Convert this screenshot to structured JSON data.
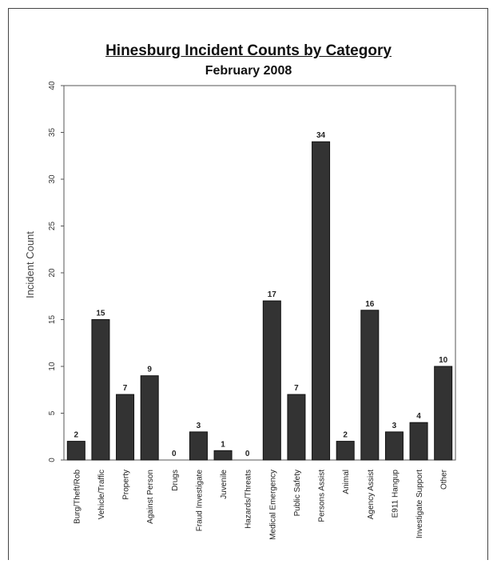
{
  "chart_data": {
    "type": "bar",
    "title": "Hinesburg Incident Counts by Category",
    "subtitle": "February 2008",
    "ylabel": "Incident Count",
    "xlabel": "",
    "ylim": [
      0,
      40
    ],
    "yticks": [
      0,
      5,
      10,
      15,
      20,
      25,
      30,
      35,
      40
    ],
    "grid": false,
    "legend": "none",
    "bar_color": "#333333",
    "categories": [
      "Burg/Theft/Rob",
      "Vehicle/Traffic",
      "Property",
      "Against Person",
      "Drugs",
      "Fraud Investigate",
      "Juvenile",
      "Hazards/Threats",
      "Medical Emergency",
      "Public Safety",
      "Persons Assist",
      "Animal",
      "Agency Assist",
      "E911 Hangup",
      "Investigate Support",
      "Other"
    ],
    "values": [
      2,
      15,
      7,
      9,
      0,
      3,
      1,
      0,
      17,
      7,
      34,
      2,
      16,
      3,
      4,
      10
    ]
  }
}
